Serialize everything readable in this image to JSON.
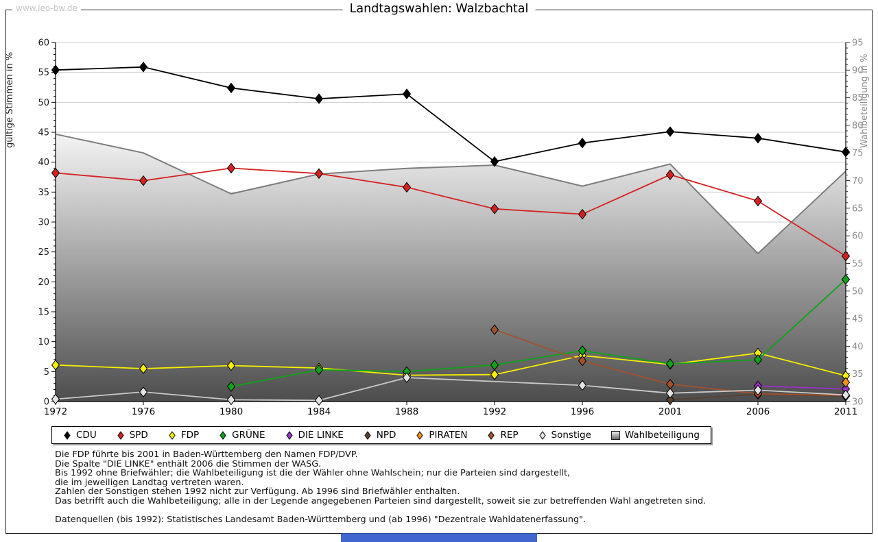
{
  "watermark": "www.leo-bw.de",
  "title": "Landtagswahlen: Walzbachtal",
  "chart_data": {
    "type": "line",
    "x": [
      1972,
      1976,
      1980,
      1984,
      1988,
      1992,
      1996,
      2001,
      2006,
      2011
    ],
    "left_axis": {
      "label": "gültige Stimmen in %",
      "min": 0,
      "max": 60,
      "step": 5,
      "minor_step": 1
    },
    "right_axis": {
      "label": "Wahlbeteiligung in %",
      "min": 30,
      "max": 95,
      "step": 5,
      "minor_step": 1
    },
    "grid": true,
    "legend_position": "bottom",
    "series": [
      {
        "name": "CDU",
        "color": "#000000",
        "values": [
          55.4,
          55.9,
          52.4,
          50.6,
          51.4,
          40.1,
          43.2,
          45.1,
          44.0,
          41.7
        ]
      },
      {
        "name": "SPD",
        "color": "#d42222",
        "values": [
          38.2,
          36.9,
          39.0,
          38.1,
          35.8,
          32.2,
          31.3,
          37.9,
          33.5,
          24.3
        ]
      },
      {
        "name": "FDP",
        "color": "#f6ef00",
        "values": [
          6.1,
          5.5,
          6.0,
          5.6,
          4.4,
          4.5,
          7.7,
          6.2,
          8.1,
          4.3
        ]
      },
      {
        "name": "GRÜNE",
        "color": "#0fa317",
        "values": [
          null,
          null,
          2.5,
          5.3,
          5.0,
          6.1,
          8.5,
          6.3,
          7.0,
          20.4
        ]
      },
      {
        "name": "DIE LINKE",
        "color": "#9b30c8",
        "values": [
          null,
          null,
          null,
          null,
          null,
          null,
          null,
          null,
          2.6,
          2.1
        ]
      },
      {
        "name": "NPD",
        "color": "#5a4030",
        "values": [
          null,
          null,
          null,
          null,
          null,
          null,
          null,
          0.3,
          1.2,
          0.9
        ]
      },
      {
        "name": "PIRATEN",
        "color": "#ef941e",
        "values": [
          null,
          null,
          null,
          null,
          null,
          null,
          null,
          null,
          null,
          3.2
        ]
      },
      {
        "name": "REP",
        "color": "#a0522d",
        "values": [
          null,
          null,
          null,
          null,
          null,
          12.0,
          6.8,
          2.9,
          1.3,
          1.0
        ]
      },
      {
        "name": "Sonstige",
        "color": "#c9c9c9",
        "marker_color": "#e3e3e3",
        "values": [
          0.4,
          1.6,
          0.3,
          0.2,
          4.0,
          null,
          2.7,
          1.4,
          1.9,
          1.1
        ]
      }
    ],
    "turnout": {
      "name": "Wahlbeteiligung",
      "axis": "right",
      "type": "area",
      "stroke": "#7d7d7d",
      "fill_top": "#f4f4f4",
      "fill_bottom": "#4d4d4d",
      "values": [
        78.4,
        75.0,
        67.6,
        71.2,
        72.2,
        72.8,
        69.0,
        73.0,
        56.8,
        71.7
      ]
    }
  },
  "footnotes": [
    "Die FDP führte bis 2001 in Baden-Württemberg den Namen FDP/DVP.",
    "Die Spalte \"DIE LINKE\" enthält 2006 die Stimmen der WASG.",
    "Bis 1992 ohne Briefwähler; die Wahlbeteiligung ist die der Wähler ohne Wahlschein; nur die Parteien sind dargestellt,",
    "die im jeweiligen Landtag vertreten waren.",
    "Zahlen der Sonstigen stehen 1992 nicht zur Verfügung. Ab 1996 sind Briefwähler enthalten.",
    "Das betrifft auch die Wahlbeteiligung; alle in der Legende angegebenen Parteien sind dargestellt, soweit sie zur betreffenden Wahl angetreten sind.",
    "",
    "Datenquellen (bis 1992): Statistisches Landesamt Baden-Württemberg und (ab 1996) \"Dezentrale Wahldatenerfassung\"."
  ]
}
